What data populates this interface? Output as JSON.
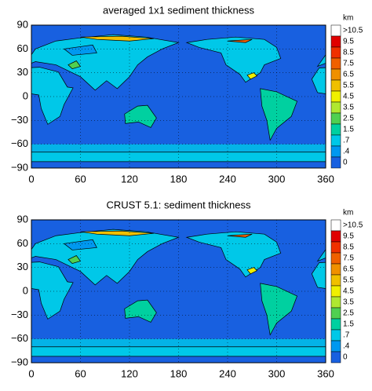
{
  "panels": [
    {
      "title": "averaged 1x1 sediment thickness",
      "unit": "km"
    },
    {
      "title": "CRUST 5.1: sediment thickness",
      "unit": "km"
    }
  ],
  "xlim": [
    0,
    360
  ],
  "ylim": [
    -90,
    90
  ],
  "xticks": [
    0,
    60,
    120,
    180,
    240,
    300,
    360
  ],
  "yticks": [
    {
      "value": -90,
      "label": "−90"
    },
    {
      "value": -60,
      "label": "−60"
    },
    {
      "value": -30,
      "label": "−30"
    },
    0,
    30,
    60,
    90
  ],
  "colorbar": {
    "labels": [
      ">10.5",
      "9.5",
      "8.5",
      "7.5",
      "6.5",
      "5.5",
      "4.5",
      "3.5",
      "2.5",
      "1.5",
      ".7",
      ".4",
      "0"
    ],
    "colors": [
      "#ffffff",
      "#e00000",
      "#f03000",
      "#f06000",
      "#f09000",
      "#f0c000",
      "#f0f000",
      "#b0e830",
      "#50d050",
      "#00d0a0",
      "#00c8e8",
      "#0098f0",
      "#1860e0"
    ]
  }
}
